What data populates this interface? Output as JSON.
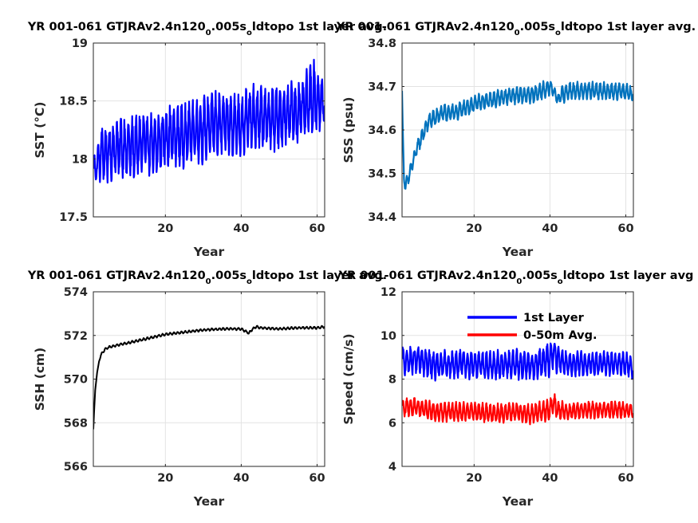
{
  "figure": {
    "panels": [
      {
        "title_main": "YR 001-061 GTJRAv2.4n120",
        "title_sub1": "0",
        "title_mid": ".005s",
        "title_sub2": "o",
        "title_end": "ldtopo 1st layer avg."
      },
      {
        "title_main": "YR 001-061 GTJRAv2.4n120",
        "title_sub1": "0",
        "title_mid": ".005s",
        "title_sub2": "o",
        "title_end": "ldtopo 1st layer avg."
      },
      {
        "title_main": "YR 001-061 GTJRAv2.4n120",
        "title_sub1": "0",
        "title_mid": ".005s",
        "title_sub2": "o",
        "title_end": "ldtopo 1st layer avg."
      },
      {
        "title_main": "YR 001-061 GTJRAv2.4n120",
        "title_sub1": "0",
        "title_mid": ".005s",
        "title_sub2": "o",
        "title_end": "ldtopo 1st layer avg"
      }
    ]
  },
  "chart_data": [
    {
      "type": "line",
      "title": "YR 001-061 GTJRAv2.4n120_0.005s_oldtopo 1st layer avg.",
      "xlabel": "Year",
      "ylabel": "SST (°C)",
      "xlim": [
        1,
        62
      ],
      "ylim": [
        17.5,
        19
      ],
      "xticks": [
        20,
        40,
        60
      ],
      "yticks": [
        17.5,
        18,
        18.5,
        19
      ],
      "ytick_labels": [
        "17.5",
        "18",
        "18.5",
        "19"
      ],
      "grid": true,
      "series": [
        {
          "color": "#0000ff",
          "x": [
            1,
            2,
            3,
            5,
            7,
            10,
            12,
            15,
            17,
            20,
            22,
            25,
            27,
            30,
            32,
            35,
            37,
            40,
            42,
            45,
            47,
            50,
            52,
            55,
            57,
            58,
            59,
            60,
            61,
            62
          ],
          "y": [
            17.9,
            17.95,
            18.05,
            18.05,
            18.1,
            18.1,
            18.1,
            18.15,
            18.1,
            18.2,
            18.2,
            18.2,
            18.25,
            18.25,
            18.3,
            18.3,
            18.3,
            18.3,
            18.35,
            18.35,
            18.35,
            18.35,
            18.4,
            18.4,
            18.45,
            18.5,
            18.55,
            18.5,
            18.5,
            18.45
          ],
          "seasonal_amplitude": [
            0.12,
            0.12,
            0.22,
            0.22,
            0.25,
            0.25,
            0.25,
            0.25,
            0.25,
            0.25,
            0.25,
            0.25,
            0.25,
            0.25,
            0.25,
            0.25,
            0.25,
            0.25,
            0.25,
            0.25,
            0.25,
            0.25,
            0.25,
            0.25,
            0.25,
            0.3,
            0.3,
            0.25,
            0.25,
            0.1
          ]
        }
      ]
    },
    {
      "type": "line",
      "title": "YR 001-061 GTJRAv2.4n120_0.005s_oldtopo 1st layer avg.",
      "xlabel": "Year",
      "ylabel": "SSS (psu)",
      "xlim": [
        1,
        62
      ],
      "ylim": [
        34.4,
        34.8
      ],
      "xticks": [
        20,
        40,
        60
      ],
      "yticks": [
        34.4,
        34.5,
        34.6,
        34.7,
        34.8
      ],
      "ytick_labels": [
        "34.4",
        "34.5",
        "34.6",
        "34.7",
        "34.8"
      ],
      "grid": true,
      "series": [
        {
          "color": "#0072bd",
          "x": [
            1,
            1.2,
            1.5,
            2,
            3,
            4,
            5,
            6,
            7,
            8,
            10,
            12,
            15,
            20,
            25,
            30,
            35,
            38,
            40,
            41,
            42,
            43,
            45,
            50,
            55,
            60,
            62
          ],
          "y": [
            34.69,
            34.6,
            34.49,
            34.47,
            34.5,
            34.53,
            34.56,
            34.58,
            34.6,
            34.62,
            34.63,
            34.64,
            34.64,
            34.66,
            34.67,
            34.68,
            34.68,
            34.69,
            34.7,
            34.69,
            34.67,
            34.68,
            34.69,
            34.69,
            34.69,
            34.69,
            34.68
          ],
          "seasonal_amplitude": [
            0.0,
            0.0,
            0.01,
            0.015,
            0.015,
            0.015,
            0.015,
            0.018,
            0.018,
            0.018,
            0.018,
            0.018,
            0.018,
            0.018,
            0.018,
            0.018,
            0.018,
            0.018,
            0.018,
            0.01,
            0.01,
            0.018,
            0.018,
            0.018,
            0.018,
            0.018,
            0.015
          ]
        }
      ]
    },
    {
      "type": "line",
      "title": "YR 001-061 GTJRAv2.4n120_0.005s_oldtopo 1st layer avg.",
      "xlabel": "Year",
      "ylabel": "SSH (cm)",
      "xlim": [
        1,
        62
      ],
      "ylim": [
        566,
        574
      ],
      "xticks": [
        20,
        40,
        60
      ],
      "yticks": [
        566,
        568,
        570,
        572,
        574
      ],
      "ytick_labels": [
        "566",
        "568",
        "570",
        "572",
        "574"
      ],
      "grid": true,
      "series": [
        {
          "color": "#000000",
          "x": [
            1,
            1.2,
            1.5,
            2,
            2.5,
            3,
            4,
            5,
            7,
            10,
            15,
            20,
            25,
            30,
            35,
            38,
            40,
            42,
            43,
            44,
            45,
            50,
            55,
            60,
            62
          ],
          "y": [
            567.7,
            568.5,
            569.5,
            570.3,
            570.8,
            571.1,
            571.35,
            571.45,
            571.55,
            571.65,
            571.85,
            572.05,
            572.15,
            572.25,
            572.3,
            572.3,
            572.3,
            572.1,
            572.3,
            572.4,
            572.35,
            572.3,
            572.35,
            572.35,
            572.4
          ],
          "seasonal_amplitude": [
            0,
            0,
            0,
            0,
            0,
            0.05,
            0.05,
            0.05,
            0.05,
            0.05,
            0.05,
            0.05,
            0.05,
            0.05,
            0.05,
            0.05,
            0.05,
            0.05,
            0.05,
            0.05,
            0.05,
            0.05,
            0.05,
            0.05,
            0.05
          ]
        }
      ]
    },
    {
      "type": "line",
      "title": "YR 001-061 GTJRAv2.4n120_0.005s_oldtopo 1st layer avg",
      "xlabel": "Year",
      "ylabel": "Speed (cm/s)",
      "xlim": [
        1,
        62
      ],
      "ylim": [
        4,
        12
      ],
      "xticks": [
        20,
        40,
        60
      ],
      "yticks": [
        4,
        6,
        8,
        10,
        12
      ],
      "ytick_labels": [
        "4",
        "6",
        "8",
        "10",
        "12"
      ],
      "grid": true,
      "legend_position": "top-right",
      "series": [
        {
          "name": "1st Layer",
          "color": "#0000ff",
          "x": [
            1,
            5,
            10,
            15,
            20,
            25,
            30,
            35,
            40,
            41,
            42,
            45,
            50,
            55,
            60,
            62
          ],
          "y": [
            8.8,
            8.9,
            8.6,
            8.7,
            8.7,
            8.6,
            8.7,
            8.6,
            8.9,
            9.3,
            8.9,
            8.7,
            8.7,
            8.7,
            8.7,
            8.5
          ],
          "seasonal_amplitude": [
            0.6,
            0.6,
            0.6,
            0.6,
            0.6,
            0.6,
            0.6,
            0.6,
            0.7,
            0.7,
            0.6,
            0.5,
            0.5,
            0.5,
            0.5,
            0.5
          ]
        },
        {
          "name": "0-50m Avg.",
          "color": "#ff0000",
          "x": [
            1,
            5,
            10,
            15,
            20,
            25,
            30,
            35,
            40,
            41,
            42,
            45,
            50,
            55,
            60,
            62
          ],
          "y": [
            6.7,
            6.7,
            6.5,
            6.5,
            6.5,
            6.4,
            6.5,
            6.4,
            6.6,
            6.9,
            6.6,
            6.5,
            6.6,
            6.6,
            6.6,
            6.5
          ],
          "seasonal_amplitude": [
            0.4,
            0.4,
            0.4,
            0.4,
            0.4,
            0.4,
            0.4,
            0.4,
            0.45,
            0.45,
            0.4,
            0.35,
            0.35,
            0.35,
            0.35,
            0.35
          ]
        }
      ]
    }
  ]
}
